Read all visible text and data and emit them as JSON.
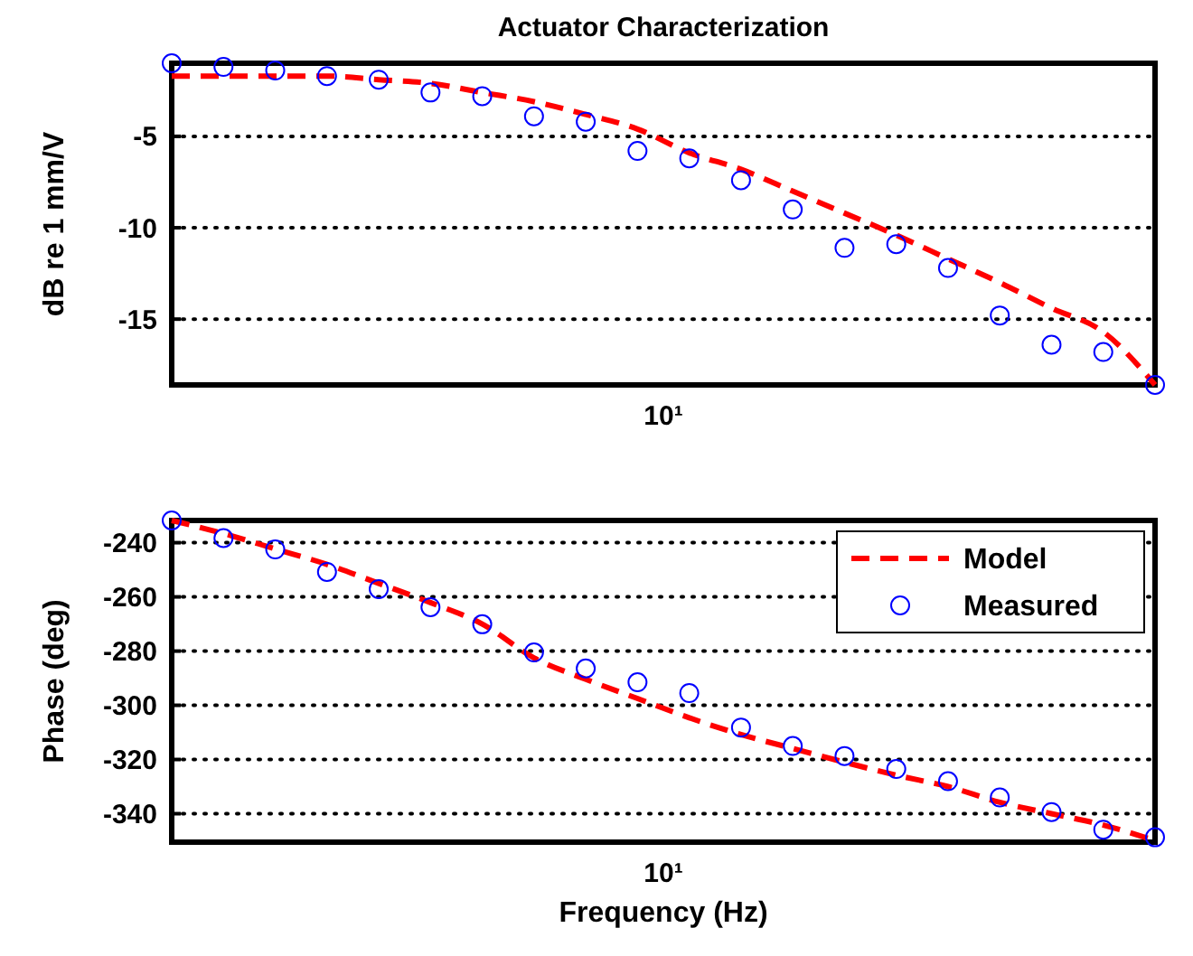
{
  "chart_data": [
    {
      "type": "line",
      "title": "Actuator Characterization",
      "ylabel": "dB re 1 mm/V",
      "grid": "y",
      "ylim": [
        -18.6,
        -1
      ],
      "yticks": [
        -15,
        -10,
        -5
      ],
      "annotations": [
        "10¹"
      ],
      "categories": [
        null,
        null,
        null,
        null,
        null,
        null,
        null,
        null,
        null,
        null,
        null,
        null,
        null,
        null,
        null,
        null,
        null,
        null,
        null,
        null
      ],
      "series": [
        {
          "type": "line",
          "line_style": "dashed",
          "color": "#ff0000",
          "values": [
            -1.7,
            -1.7,
            -1.7,
            -1.7,
            -1.9,
            -2.1,
            -2.6,
            -3.1,
            -3.8,
            -4.6,
            -5.9,
            -6.8,
            -8.0,
            -9.2,
            -10.4,
            -11.7,
            -13.0,
            -14.4,
            -15.7,
            -18.6
          ]
        },
        {
          "type": "scatter",
          "marker": "circle",
          "color": "#0000ff",
          "values": [
            -1.0,
            -1.2,
            -1.4,
            -1.7,
            -1.9,
            -2.6,
            -2.8,
            -3.9,
            -4.2,
            -5.8,
            -6.2,
            -7.4,
            -9.0,
            -11.1,
            -10.9,
            -12.2,
            -14.8,
            -16.4,
            -16.8,
            -18.6
          ]
        }
      ]
    },
    {
      "type": "line",
      "xlabel": "Frequency (Hz)",
      "ylabel": "Phase (deg)",
      "grid": "y",
      "legend": "top right",
      "ylim": [
        -350.5,
        -231.8
      ],
      "yticks": [
        -340,
        -320,
        -300,
        -280,
        -260,
        -240
      ],
      "annotations": [
        "10¹"
      ],
      "categories": [
        null,
        null,
        null,
        null,
        null,
        null,
        null,
        null,
        null,
        null,
        null,
        null,
        null,
        null,
        null,
        null,
        null,
        null,
        null,
        null
      ],
      "series": [
        {
          "name": "Model",
          "type": "line",
          "line_style": "dashed",
          "color": "#ff0000",
          "values": [
            -231.8,
            -236.6,
            -242.3,
            -248,
            -255,
            -262.1,
            -270,
            -282.5,
            -290.4,
            -297.5,
            -304.6,
            -310.8,
            -315.9,
            -321,
            -325.8,
            -330,
            -335.8,
            -340,
            -344.2,
            -349.9
          ]
        },
        {
          "name": "Measured",
          "type": "scatter",
          "marker": "circle",
          "color": "#0000ff",
          "values": [
            -231.8,
            -238.3,
            -242.5,
            -250.8,
            -257.1,
            -263.8,
            -270.1,
            -280.5,
            -286.4,
            -291.5,
            -295.5,
            -308.2,
            -315,
            -318.7,
            -323.5,
            -328,
            -334,
            -339.4,
            -345.9,
            -348.7
          ]
        }
      ]
    }
  ]
}
